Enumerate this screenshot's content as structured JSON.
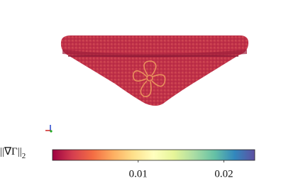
{
  "colorbar": {
    "label": "||∇Γ||",
    "label_subscript": "2",
    "lim": [
      0,
      0.0236
    ],
    "ticks": [
      0.01,
      0.02
    ],
    "colors": [
      "#9e0142",
      "#d53e4f",
      "#f46d43",
      "#fdae61",
      "#fee08b",
      "#ffffbf",
      "#e6f598",
      "#abdda4",
      "#66c2a5",
      "#3288bd",
      "#5e4fa2"
    ]
  }
}
